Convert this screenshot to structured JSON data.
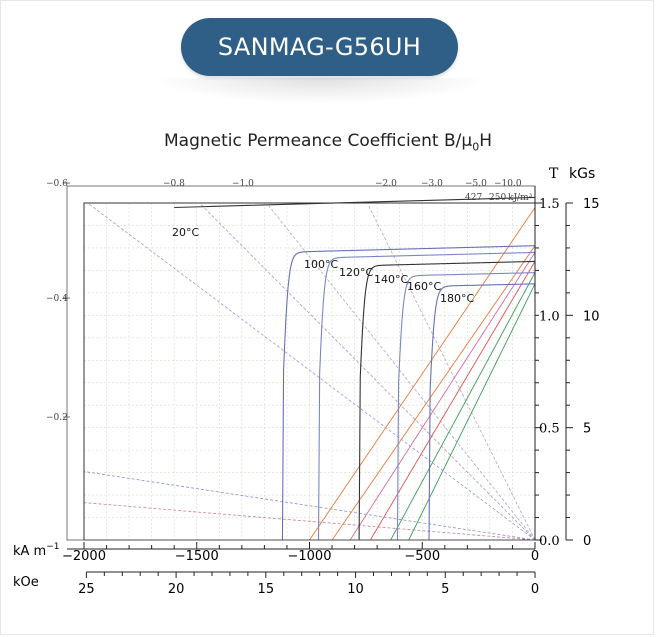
{
  "header": {
    "product_name": "SANMAG-G56UH"
  },
  "chart_data": {
    "type": "line",
    "title": "Magnetic Permeance Coefficient B/μ0H",
    "title_main": "Magnetic Permeance Coefficient B/μ",
    "title_sub": "0",
    "title_tail": "H",
    "xlabel": "kA m",
    "xlabel_sup": "−1",
    "xlabel2": "kOe",
    "ylabel_right_T": "T",
    "ylabel_right_kGs": "kGs",
    "x_kAm_range": [
      -2000,
      0
    ],
    "x_kAm_ticks": [
      "−2000",
      "−1500",
      "−1000",
      "−500",
      "0"
    ],
    "x_kOe_ticks": [
      "25",
      "20",
      "15",
      "10",
      "5",
      "0"
    ],
    "y_T_range": [
      0,
      1.5
    ],
    "y_T_ticks": [
      "0.0",
      "0.5",
      "1.0",
      "1.5"
    ],
    "y_kGs_ticks": [
      "0",
      "5",
      "10",
      "15"
    ],
    "left_tick_labels": [
      "−0.6",
      "−0.4",
      "−0.2"
    ],
    "top_pc_labels": [
      "−0.8",
      "−1.0",
      "−2.0",
      "−3.0",
      "−5.0",
      "−10.0"
    ],
    "top_pc_extra": [
      "427",
      "250"
    ],
    "top_pc_unit": "kJ/m³",
    "grid": true,
    "series": [
      {
        "name": "20°C",
        "label_text": "20°C",
        "color": "#333333",
        "Br": 1.48,
        "Hcj": -1990
      },
      {
        "name": "100°C",
        "label_text": "100°C",
        "color": "#6670b8",
        "Br": 1.31,
        "Hcj": -1120
      },
      {
        "name": "120°C",
        "label_text": "120°C",
        "color": "#7b86c8",
        "Br": 1.28,
        "Hcj": -960
      },
      {
        "name": "140°C",
        "label_text": "140°C",
        "color": "#333333",
        "Br": 1.24,
        "Hcj": -780
      },
      {
        "name": "160°C",
        "label_text": "160°C",
        "color": "#7b86c8",
        "Br": 1.19,
        "Hcj": -610
      },
      {
        "name": "180°C",
        "label_text": "180°C",
        "color": "#6670b8",
        "Br": 1.14,
        "Hcj": -470
      }
    ],
    "normal_lines": [
      {
        "name": "",
        "color": "#e87a3a",
        "Br": 1.48,
        "Hcb": -1000
      },
      {
        "name": "",
        "color": "#e87a3a",
        "Br": 1.31,
        "Hcb": -900
      },
      {
        "name": "",
        "color": "#d46aa0",
        "Br": 1.28,
        "Hcb": -820
      },
      {
        "name": "",
        "color": "#e05050",
        "Br": 1.24,
        "Hcb": -730
      },
      {
        "name": "",
        "color": "#3c9a5a",
        "Br": 1.19,
        "Hcb": -640
      },
      {
        "name": "",
        "color": "#3c9a5a",
        "Br": 1.14,
        "Hcb": -560
      }
    ]
  }
}
